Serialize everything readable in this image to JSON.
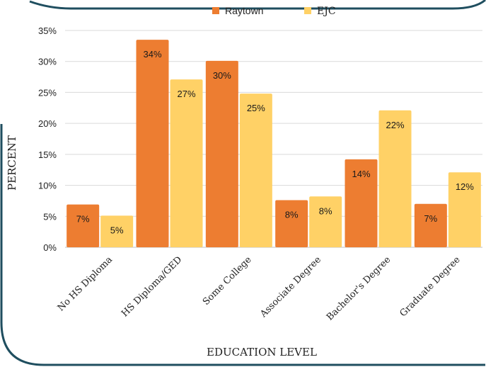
{
  "chart_data": {
    "type": "bar",
    "xlabel": "EDUCATION LEVEL",
    "ylabel": "PERCENT",
    "categories": [
      "No HS Diploma",
      "HS Diploma/GED",
      "Some College",
      "Associate Degree",
      "Bachelor's Degree",
      "Graduate Degree"
    ],
    "series": [
      {
        "name": "Raytown",
        "color": "#ED7D31",
        "values": [
          6.9,
          33.5,
          30.1,
          7.6,
          14.2,
          7.0
        ],
        "labels": [
          "7%",
          "34%",
          "30%",
          "8%",
          "14%",
          "7%"
        ]
      },
      {
        "name": "EJC",
        "color": "#FFD166",
        "values": [
          5.1,
          27.1,
          24.8,
          8.2,
          22.1,
          12.1
        ],
        "labels": [
          "5%",
          "27%",
          "25%",
          "8%",
          "22%",
          "12%"
        ]
      }
    ],
    "ylim": [
      0,
      35
    ],
    "yticks": [
      0,
      5,
      10,
      15,
      20,
      25,
      30,
      35
    ],
    "ytick_labels": [
      "0%",
      "5%",
      "10%",
      "15%",
      "20%",
      "25%",
      "30%",
      "35%"
    ],
    "grid": true,
    "legend_position": "top-center",
    "frame_color": "#1F4E5F"
  }
}
